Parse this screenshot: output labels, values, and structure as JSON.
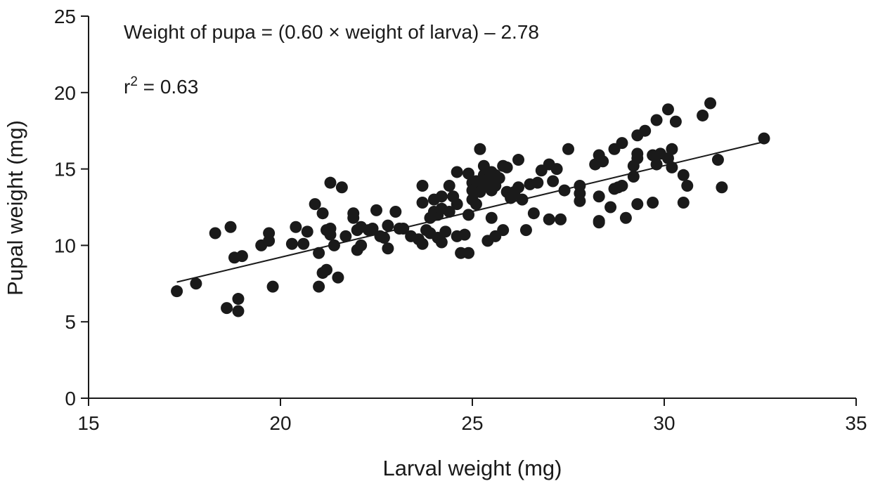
{
  "chart_data": {
    "type": "scatter",
    "xlabel": "Larval weight (mg)",
    "ylabel": "Pupal weight (mg)",
    "xlim": [
      15,
      35
    ],
    "ylim": [
      0,
      25
    ],
    "xticks": [
      "15",
      "20",
      "25",
      "30",
      "35"
    ],
    "yticks": [
      "0",
      "5",
      "10",
      "15",
      "20",
      "25"
    ],
    "grid": false,
    "legend": "none",
    "annotations": {
      "equation": "Weight of pupa = (0.60 × weight of larva) – 2.78",
      "r_squared_prefix": "r",
      "r_squared_superscript": "2",
      "r_squared_suffix": " = 0.63"
    },
    "trendline": {
      "slope": 0.6,
      "intercept": -2.78,
      "x_range": [
        17.3,
        32.6
      ]
    },
    "points": [
      [
        17.3,
        7.0
      ],
      [
        17.8,
        7.5
      ],
      [
        18.3,
        10.8
      ],
      [
        18.6,
        5.9
      ],
      [
        18.7,
        11.2
      ],
      [
        18.8,
        9.2
      ],
      [
        18.9,
        6.5
      ],
      [
        18.9,
        5.7
      ],
      [
        19.0,
        9.3
      ],
      [
        19.5,
        10.0
      ],
      [
        19.7,
        10.3
      ],
      [
        19.7,
        10.8
      ],
      [
        19.8,
        7.3
      ],
      [
        20.3,
        10.1
      ],
      [
        20.4,
        11.2
      ],
      [
        20.6,
        10.1
      ],
      [
        20.7,
        10.9
      ],
      [
        20.9,
        12.7
      ],
      [
        21.0,
        9.5
      ],
      [
        21.0,
        7.3
      ],
      [
        21.1,
        12.1
      ],
      [
        21.1,
        8.2
      ],
      [
        21.2,
        8.4
      ],
      [
        21.2,
        11.0
      ],
      [
        21.3,
        11.1
      ],
      [
        21.3,
        10.7
      ],
      [
        21.3,
        14.1
      ],
      [
        21.4,
        10.0
      ],
      [
        21.5,
        7.9
      ],
      [
        21.6,
        13.8
      ],
      [
        21.7,
        10.6
      ],
      [
        21.9,
        11.8
      ],
      [
        21.9,
        12.1
      ],
      [
        22.0,
        9.7
      ],
      [
        22.0,
        11.0
      ],
      [
        22.1,
        10.0
      ],
      [
        22.1,
        11.2
      ],
      [
        22.3,
        11.0
      ],
      [
        22.4,
        11.1
      ],
      [
        22.5,
        12.3
      ],
      [
        22.6,
        10.6
      ],
      [
        22.7,
        10.5
      ],
      [
        22.8,
        11.3
      ],
      [
        22.8,
        9.8
      ],
      [
        23.0,
        12.2
      ],
      [
        23.1,
        11.1
      ],
      [
        23.2,
        11.1
      ],
      [
        23.4,
        10.6
      ],
      [
        23.6,
        10.4
      ],
      [
        23.7,
        10.1
      ],
      [
        23.7,
        13.9
      ],
      [
        23.7,
        12.8
      ],
      [
        23.8,
        11.0
      ],
      [
        23.9,
        11.8
      ],
      [
        23.9,
        10.8
      ],
      [
        24.0,
        12.2
      ],
      [
        24.0,
        13.0
      ],
      [
        24.1,
        10.5
      ],
      [
        24.1,
        12.0
      ],
      [
        24.2,
        10.2
      ],
      [
        24.2,
        12.4
      ],
      [
        24.2,
        13.2
      ],
      [
        24.3,
        10.9
      ],
      [
        24.4,
        13.9
      ],
      [
        24.4,
        12.2
      ],
      [
        24.5,
        13.2
      ],
      [
        24.6,
        10.6
      ],
      [
        24.6,
        12.7
      ],
      [
        24.6,
        14.8
      ],
      [
        24.7,
        9.5
      ],
      [
        24.8,
        10.7
      ],
      [
        24.9,
        12.0
      ],
      [
        24.9,
        14.7
      ],
      [
        24.9,
        9.5
      ],
      [
        25.0,
        14.1
      ],
      [
        25.0,
        13.6
      ],
      [
        25.0,
        13.0
      ],
      [
        25.1,
        12.7
      ],
      [
        25.1,
        14.2
      ],
      [
        25.2,
        16.3
      ],
      [
        25.2,
        13.5
      ],
      [
        25.3,
        15.2
      ],
      [
        25.3,
        14.6
      ],
      [
        25.3,
        13.9
      ],
      [
        25.4,
        14.3
      ],
      [
        25.4,
        10.3
      ],
      [
        25.5,
        11.8
      ],
      [
        25.5,
        14.8
      ],
      [
        25.5,
        13.6
      ],
      [
        25.6,
        13.9
      ],
      [
        25.6,
        14.6
      ],
      [
        25.6,
        10.6
      ],
      [
        25.7,
        14.4
      ],
      [
        25.8,
        11.0
      ],
      [
        25.8,
        15.2
      ],
      [
        25.9,
        13.5
      ],
      [
        25.9,
        15.1
      ],
      [
        26.0,
        13.1
      ],
      [
        26.1,
        13.5
      ],
      [
        26.2,
        15.6
      ],
      [
        26.2,
        13.8
      ],
      [
        26.3,
        13.0
      ],
      [
        26.4,
        11.0
      ],
      [
        26.5,
        14.0
      ],
      [
        26.6,
        12.1
      ],
      [
        26.7,
        14.1
      ],
      [
        26.8,
        14.9
      ],
      [
        27.0,
        11.7
      ],
      [
        27.0,
        15.3
      ],
      [
        27.1,
        14.2
      ],
      [
        27.2,
        15.0
      ],
      [
        27.3,
        11.7
      ],
      [
        27.4,
        13.6
      ],
      [
        27.5,
        16.3
      ],
      [
        27.8,
        13.4
      ],
      [
        27.8,
        12.9
      ],
      [
        27.8,
        13.9
      ],
      [
        28.2,
        15.3
      ],
      [
        28.3,
        13.2
      ],
      [
        28.3,
        11.6
      ],
      [
        28.3,
        11.5
      ],
      [
        28.3,
        15.9
      ],
      [
        28.4,
        15.5
      ],
      [
        28.6,
        12.5
      ],
      [
        28.7,
        13.7
      ],
      [
        28.7,
        16.3
      ],
      [
        28.8,
        13.8
      ],
      [
        28.9,
        16.7
      ],
      [
        28.9,
        13.9
      ],
      [
        29.0,
        11.8
      ],
      [
        29.2,
        14.5
      ],
      [
        29.2,
        15.2
      ],
      [
        29.3,
        15.7
      ],
      [
        29.3,
        17.2
      ],
      [
        29.3,
        16.0
      ],
      [
        29.3,
        12.7
      ],
      [
        29.5,
        17.5
      ],
      [
        29.7,
        12.8
      ],
      [
        29.7,
        15.9
      ],
      [
        29.8,
        18.2
      ],
      [
        29.8,
        15.3
      ],
      [
        29.9,
        16.0
      ],
      [
        30.1,
        18.9
      ],
      [
        30.1,
        15.7
      ],
      [
        30.2,
        15.1
      ],
      [
        30.2,
        16.3
      ],
      [
        30.3,
        18.1
      ],
      [
        30.5,
        14.6
      ],
      [
        30.5,
        12.8
      ],
      [
        30.6,
        13.9
      ],
      [
        31.0,
        18.5
      ],
      [
        31.2,
        19.3
      ],
      [
        31.4,
        15.6
      ],
      [
        31.5,
        13.8
      ],
      [
        32.6,
        17.0
      ]
    ]
  }
}
